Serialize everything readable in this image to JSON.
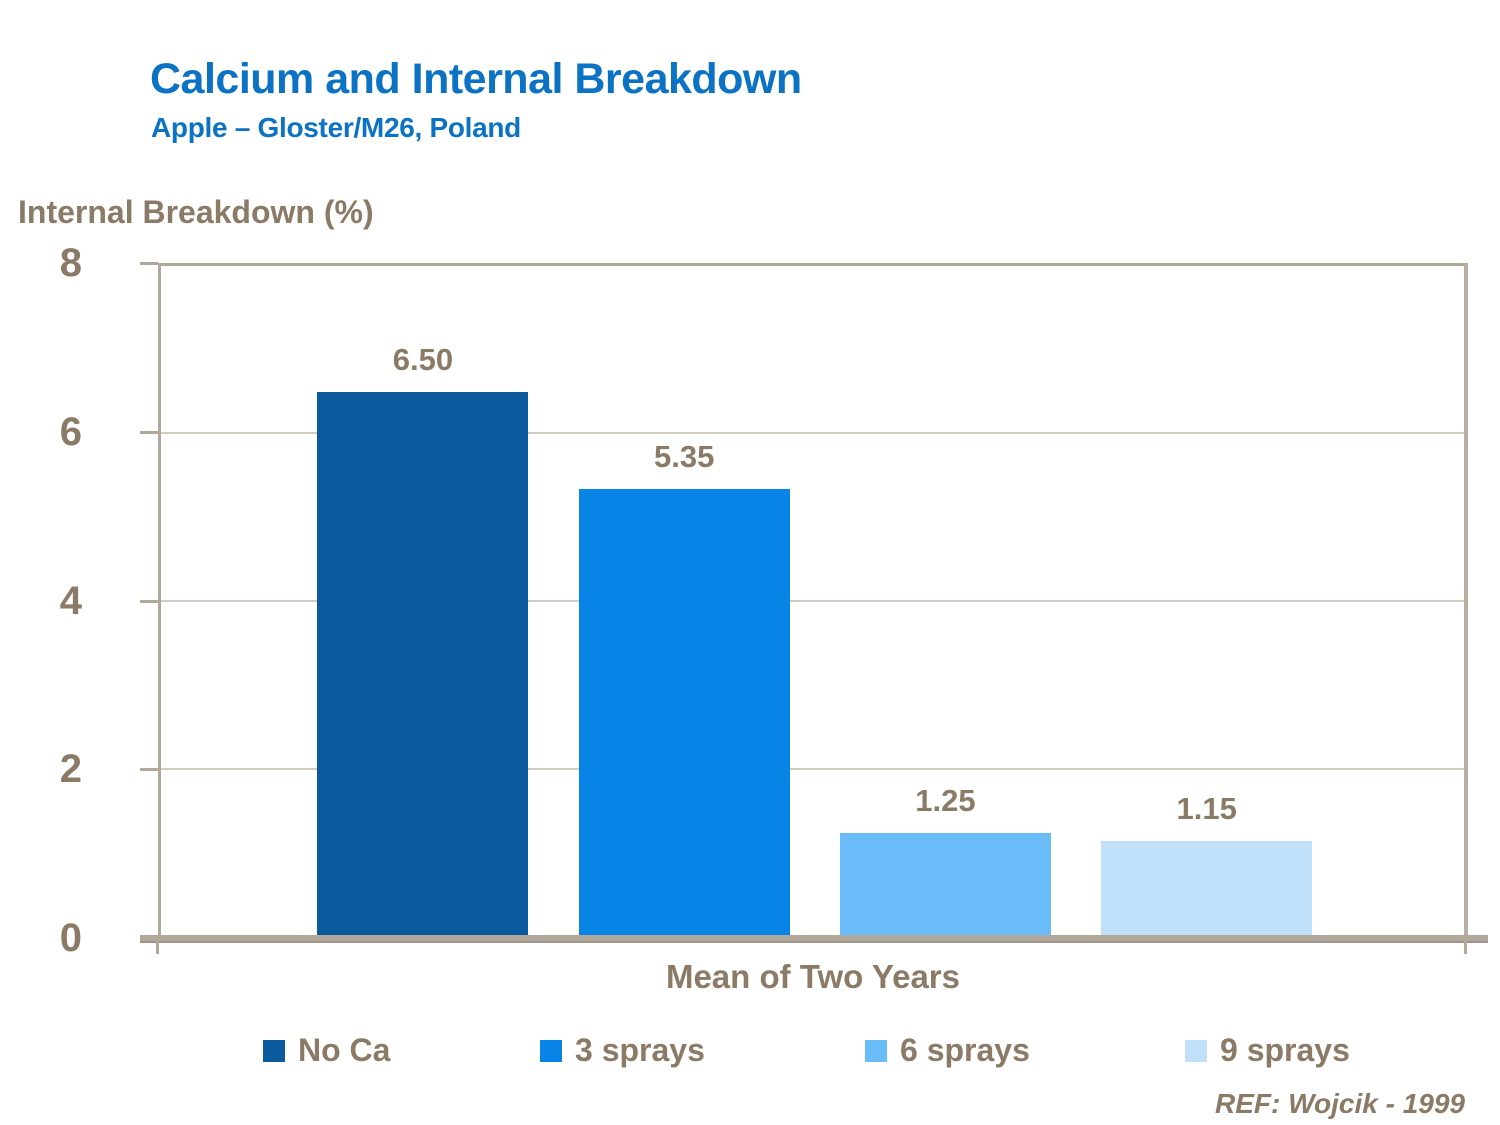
{
  "header": {
    "title": "Calcium and Internal Breakdown",
    "subtitle": "Apple – Gloster/M26, Poland"
  },
  "footer": {
    "reference": "REF: Wojcik - 1999"
  },
  "colors": {
    "title_blue": "#0b72c4",
    "text_brown": "#8a7a66",
    "axis_tan": "#b2a79b",
    "gridline_tan": "#d4cabe"
  },
  "chart_data": {
    "type": "bar",
    "title": "Calcium and Internal Breakdown",
    "subtitle": "Apple – Gloster/M26, Poland",
    "ylabel": "Internal Breakdown (%)",
    "xlabel": "Mean of Two Years",
    "ylim": [
      0,
      8
    ],
    "yticks": [
      0,
      2,
      4,
      6,
      8
    ],
    "grid": "horizontal",
    "legend_position": "bottom",
    "categories": [
      "No Ca",
      "3 sprays",
      "6 sprays",
      "9 sprays"
    ],
    "values": [
      6.5,
      5.35,
      1.25,
      1.15
    ],
    "value_labels": [
      "6.50",
      "5.35",
      "1.25",
      "1.15"
    ],
    "bar_colors": [
      "#0a5a9d",
      "#0884e6",
      "#69bcf8",
      "#c0dff8"
    ],
    "annotation": "REF: Wojcik - 1999"
  }
}
